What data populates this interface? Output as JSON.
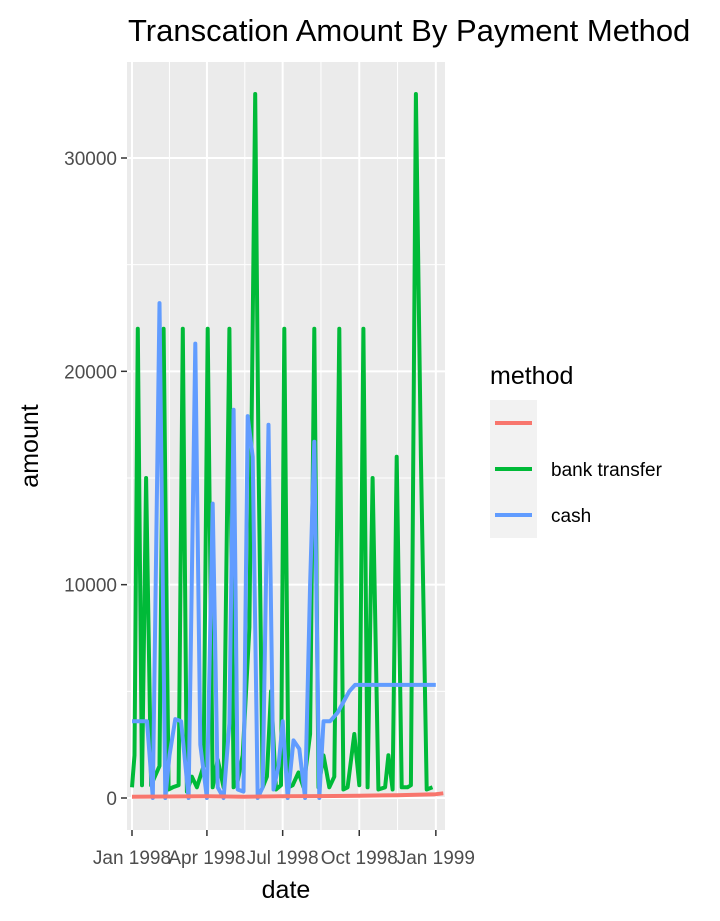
{
  "chart_data": {
    "type": "line",
    "title": "Transcation Amount By Payment Method",
    "xlabel": "date",
    "ylabel": "amount",
    "x_ticks": [
      "Jan 1998",
      "Apr 1998",
      "Jul 1998",
      "Oct 1998",
      "Jan 1999"
    ],
    "x_tick_dates": [
      "1998-01-01",
      "1998-04-01",
      "1998-07-01",
      "1998-10-01",
      "1999-01-01"
    ],
    "xlim": [
      "1997-12-26",
      "1999-01-12"
    ],
    "y_ticks": [
      0,
      10000,
      20000,
      30000
    ],
    "ylim": [
      -1500,
      34500
    ],
    "grid": true,
    "legend": {
      "title": "method",
      "placement": "right"
    },
    "series": [
      {
        "name": "",
        "color": "#F8766D",
        "x": [
          "1998-01-01",
          "1998-02-15",
          "1998-04-01",
          "1998-05-15",
          "1998-07-01",
          "1998-08-15",
          "1998-10-01",
          "1998-11-15",
          "1999-01-01",
          "1999-01-10"
        ],
        "y": [
          60,
          70,
          80,
          60,
          80,
          90,
          110,
          130,
          180,
          220
        ]
      },
      {
        "name": "bank transfer",
        "color": "#00BA38",
        "x": [
          "1998-01-01",
          "1998-01-04",
          "1998-01-08",
          "1998-01-13",
          "1998-01-18",
          "1998-01-24",
          "1998-02-03",
          "1998-02-08",
          "1998-02-14",
          "1998-02-19",
          "1998-02-26",
          "1998-03-03",
          "1998-03-08",
          "1998-03-14",
          "1998-03-20",
          "1998-03-28",
          "1998-04-02",
          "1998-04-08",
          "1998-04-14",
          "1998-04-21",
          "1998-04-28",
          "1998-05-03",
          "1998-05-08",
          "1998-05-14",
          "1998-05-22",
          "1998-05-29",
          "1998-06-02",
          "1998-06-07",
          "1998-06-12",
          "1998-06-17",
          "1998-06-23",
          "1998-06-29",
          "1998-07-03",
          "1998-07-08",
          "1998-07-13",
          "1998-07-20",
          "1998-07-26",
          "1998-08-03",
          "1998-08-08",
          "1998-08-13",
          "1998-08-19",
          "1998-08-26",
          "1998-09-01",
          "1998-09-07",
          "1998-09-12",
          "1998-09-17",
          "1998-09-25",
          "1998-10-01",
          "1998-10-06",
          "1998-10-11",
          "1998-10-17",
          "1998-10-24",
          "1998-11-01",
          "1998-11-05",
          "1998-11-10",
          "1998-11-15",
          "1998-11-21",
          "1998-11-28",
          "1998-12-02",
          "1998-12-08",
          "1998-12-14",
          "1998-12-21",
          "1998-12-28"
        ],
        "y": [
          500,
          2000,
          22000,
          600,
          15000,
          600,
          1500,
          22000,
          400,
          500,
          600,
          22000,
          300,
          1000,
          500,
          1500,
          22000,
          500,
          1800,
          500,
          22000,
          500,
          800,
          2000,
          8000,
          33000,
          16000,
          500,
          1000,
          5000,
          400,
          600,
          22000,
          500,
          600,
          1200,
          500,
          3000,
          22000,
          500,
          2000,
          500,
          1000,
          22000,
          400,
          500,
          3000,
          600,
          22000,
          500,
          15000,
          400,
          500,
          2000,
          400,
          16000,
          500,
          500,
          600,
          33000,
          16000,
          400,
          500
        ]
      },
      {
        "name": "cash",
        "color": "#619CFF",
        "x": [
          "1998-01-01",
          "1998-01-10",
          "1998-01-19",
          "1998-01-26",
          "1998-02-03",
          "1998-02-10",
          "1998-02-15",
          "1998-02-22",
          "1998-03-01",
          "1998-03-10",
          "1998-03-18",
          "1998-03-24",
          "1998-04-01",
          "1998-04-08",
          "1998-04-14",
          "1998-04-21",
          "1998-04-28",
          "1998-05-03",
          "1998-05-08",
          "1998-05-15",
          "1998-05-20",
          "1998-05-26",
          "1998-06-01",
          "1998-06-07",
          "1998-06-14",
          "1998-06-20",
          "1998-06-26",
          "1998-07-01",
          "1998-07-07",
          "1998-07-14",
          "1998-07-21",
          "1998-07-28",
          "1998-08-03",
          "1998-08-08",
          "1998-08-14",
          "1998-08-19",
          "1998-08-27",
          "1998-09-05",
          "1998-09-12",
          "1998-09-19",
          "1998-09-26",
          "1998-10-03",
          "1998-10-10",
          "1998-10-17",
          "1998-10-24",
          "1998-11-01",
          "1998-11-09",
          "1998-11-15",
          "1998-11-21",
          "1998-11-27",
          "1998-12-05",
          "1998-12-13",
          "1998-12-20",
          "1998-12-27",
          "1999-01-01"
        ],
        "y": [
          3600,
          3600,
          3600,
          0,
          23200,
          0,
          2000,
          3700,
          3600,
          0,
          21300,
          2500,
          0,
          13800,
          500,
          0,
          3500,
          18200,
          400,
          300,
          17900,
          16000,
          0,
          500,
          17500,
          400,
          1500,
          3600,
          0,
          2700,
          2300,
          0,
          10000,
          16700,
          0,
          3600,
          3600,
          4000,
          4500,
          5000,
          5300,
          5300,
          5300,
          5300,
          5300,
          5300,
          5300,
          5300,
          5300,
          5300,
          5300,
          5300,
          5300,
          5300,
          5300
        ]
      }
    ]
  }
}
